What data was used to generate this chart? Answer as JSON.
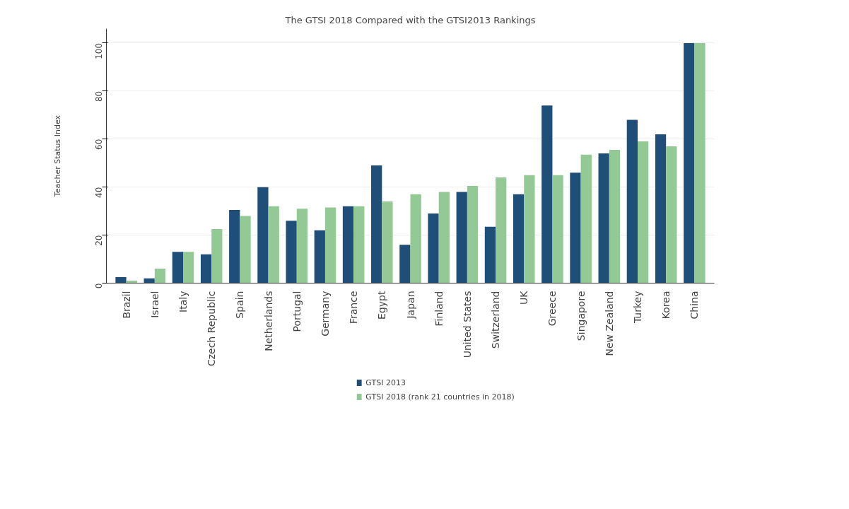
{
  "chart_data": {
    "type": "bar",
    "title": "The GTSI 2018 Compared with the GTSI2013 Rankings",
    "ylabel": "Teacher Status Index",
    "categories": [
      "Brazil",
      "Israel",
      "Italy",
      "Czech Republic",
      "Spain",
      "Netherlands",
      "Portugal",
      "Germany",
      "France",
      "Egypt",
      "Japan",
      "Finland",
      "United States",
      "Switzerland",
      "UK",
      "Greece",
      "Singapore",
      "New Zealand",
      "Turkey",
      "Korea",
      "China"
    ],
    "series": [
      {
        "name": "GTSI 2013",
        "color": "#1f4e79",
        "values": [
          2.5,
          2,
          13,
          12,
          30.5,
          40,
          26,
          22,
          32,
          49,
          16,
          29,
          38,
          23.5,
          37,
          74,
          46,
          54,
          68,
          62,
          100
        ]
      },
      {
        "name": "GTSI 2018 (rank 21 countries in 2018)",
        "color": "#93c994",
        "values": [
          1,
          6,
          13,
          22.5,
          28,
          32,
          31,
          31.5,
          32,
          34,
          37,
          38,
          40.5,
          44,
          45,
          45,
          53.5,
          55.5,
          59,
          57,
          100
        ]
      }
    ],
    "ylim": [
      0,
      106
    ],
    "yticks": [
      0,
      20,
      40,
      60,
      80,
      100
    ],
    "grid": "y",
    "legend": "bottom"
  }
}
